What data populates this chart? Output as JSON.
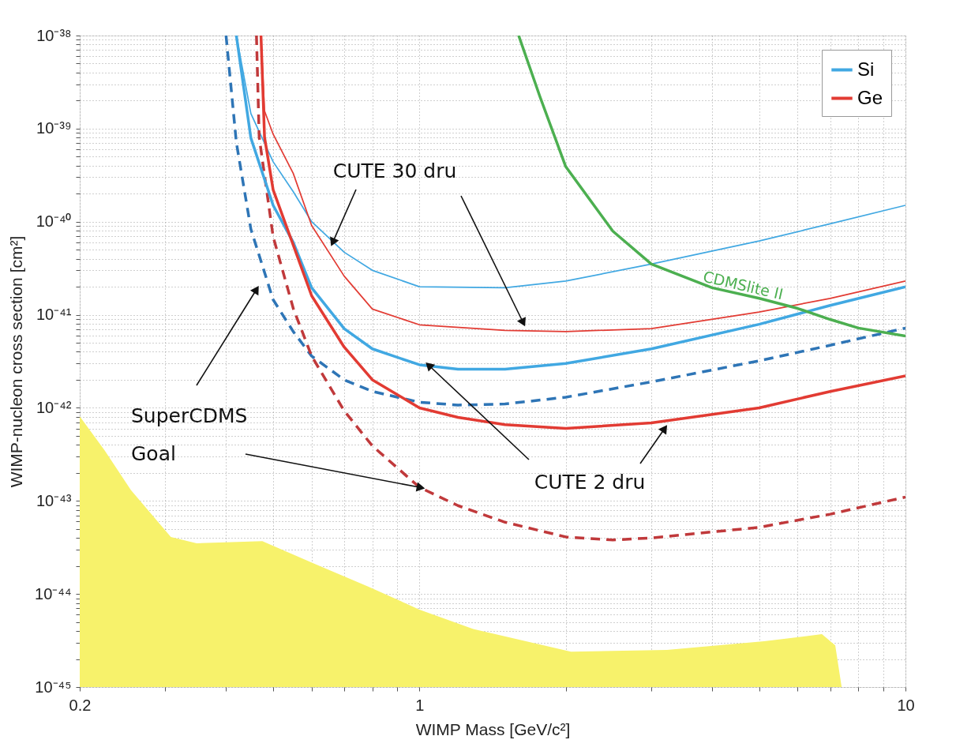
{
  "chart_data": {
    "type": "line",
    "log": "xy",
    "grid": true,
    "legend": "top right",
    "xlabel": "WIMP Mass [GeV/c²]",
    "ylabel": "WIMP-nucleon cross section [cm²]",
    "xlim": [
      0.2,
      10
    ],
    "ylim": [
      1e-45,
      1e-38
    ],
    "xticks": [
      0.2,
      {
        "value": 0.3,
        "label": null
      },
      {
        "value": 0.4,
        "label": null
      },
      {
        "value": 0.5,
        "label": null
      },
      {
        "value": 0.6,
        "label": null
      },
      {
        "value": 0.7,
        "label": null
      },
      {
        "value": 0.8,
        "label": null
      },
      {
        "value": 0.9,
        "label": null
      },
      1,
      {
        "value": 2,
        "label": null
      },
      {
        "value": 3,
        "label": null
      },
      {
        "value": 4,
        "label": null
      },
      {
        "value": 5,
        "label": null
      },
      {
        "value": 6,
        "label": null
      },
      {
        "value": 7,
        "label": null
      },
      {
        "value": 8,
        "label": null
      },
      {
        "value": 9,
        "label": null
      },
      10
    ],
    "yticks": [
      {
        "value": 1e-45,
        "label": "10⁻⁴⁵"
      },
      {
        "value": 1e-44,
        "label": "10⁻⁴⁴"
      },
      {
        "value": 1e-43,
        "label": "10⁻⁴³"
      },
      {
        "value": 1e-42,
        "label": "10⁻⁴²"
      },
      {
        "value": 1e-41,
        "label": "10⁻⁴¹"
      },
      {
        "value": 1e-40,
        "label": "10⁻⁴⁰"
      },
      {
        "value": 1e-39,
        "label": "10⁻³⁹"
      },
      {
        "value": 1e-38,
        "label": "10⁻³⁸"
      },
      {
        "value": 2e-45,
        "label": null
      },
      {
        "value": 3e-45,
        "label": null
      },
      {
        "value": 4e-45,
        "label": null
      },
      {
        "value": 5e-45,
        "label": null
      },
      {
        "value": 6e-45,
        "label": null
      },
      {
        "value": 7e-45,
        "label": null
      },
      {
        "value": 8e-45,
        "label": null
      },
      {
        "value": 9e-45,
        "label": null
      },
      {
        "value": 2e-44,
        "label": null
      },
      {
        "value": 3e-44,
        "label": null
      },
      {
        "value": 4e-44,
        "label": null
      },
      {
        "value": 5e-44,
        "label": null
      },
      {
        "value": 6e-44,
        "label": null
      },
      {
        "value": 7e-44,
        "label": null
      },
      {
        "value": 8e-44,
        "label": null
      },
      {
        "value": 9e-44,
        "label": null
      },
      {
        "value": 2e-43,
        "label": null
      },
      {
        "value": 3e-43,
        "label": null
      },
      {
        "value": 4e-43,
        "label": null
      },
      {
        "value": 5e-43,
        "label": null
      },
      {
        "value": 6e-43,
        "label": null
      },
      {
        "value": 7e-43,
        "label": null
      },
      {
        "value": 8e-43,
        "label": null
      },
      {
        "value": 9e-43,
        "label": null
      },
      {
        "value": 2e-42,
        "label": null
      },
      {
        "value": 3e-42,
        "label": null
      },
      {
        "value": 4e-42,
        "label": null
      },
      {
        "value": 5e-42,
        "label": null
      },
      {
        "value": 6e-42,
        "label": null
      },
      {
        "value": 7e-42,
        "label": null
      },
      {
        "value": 8e-42,
        "label": null
      },
      {
        "value": 9e-42,
        "label": null
      },
      {
        "value": 2e-41,
        "label": null
      },
      {
        "value": 3e-41,
        "label": null
      },
      {
        "value": 4e-41,
        "label": null
      },
      {
        "value": 5e-41,
        "label": null
      },
      {
        "value": 6e-41,
        "label": null
      },
      {
        "value": 7e-41,
        "label": null
      },
      {
        "value": 8e-41,
        "label": null
      },
      {
        "value": 9e-41,
        "label": null
      },
      {
        "value": 2e-40,
        "label": null
      },
      {
        "value": 3e-40,
        "label": null
      },
      {
        "value": 4e-40,
        "label": null
      },
      {
        "value": 5e-40,
        "label": null
      },
      {
        "value": 6e-40,
        "label": null
      },
      {
        "value": 7e-40,
        "label": null
      },
      {
        "value": 8e-40,
        "label": null
      },
      {
        "value": 9e-40,
        "label": null
      },
      {
        "value": 2e-39,
        "label": null
      },
      {
        "value": 3e-39,
        "label": null
      },
      {
        "value": 4e-39,
        "label": null
      },
      {
        "value": 5e-39,
        "label": null
      },
      {
        "value": 6e-39,
        "label": null
      },
      {
        "value": 7e-39,
        "label": null
      },
      {
        "value": 8e-39,
        "label": null
      },
      {
        "value": 9e-39,
        "label": null
      }
    ],
    "series": [
      {
        "type": "area",
        "color": "#f7f26b",
        "x": [
          0.2,
          0.225,
          0.255,
          0.308,
          0.348,
          0.475,
          0.61,
          0.784,
          1,
          1.29,
          2.05,
          3.23,
          5.12,
          6.73,
          7.17,
          7.39
        ],
        "values": [
          8.1e-43,
          3.5e-43,
          1.3e-43,
          4.1e-44,
          3.5e-44,
          3.7e-44,
          2.1e-44,
          1.2e-44,
          6.8e-45,
          4.2e-45,
          2.4e-45,
          2.5e-45,
          3.1e-45,
          3.7e-45,
          2.8e-45,
          1e-45
        ]
      },
      {
        "color": "#41a8e2",
        "x": [
          0.42,
          0.45,
          0.5,
          0.55,
          0.6,
          0.7,
          0.8,
          1,
          1.5,
          2,
          3,
          5,
          7,
          10
        ],
        "values": [
          1e-38,
          1.45e-39,
          4.4e-40,
          2.1e-40,
          1e-40,
          4.7e-41,
          3e-41,
          2e-41,
          1.95e-41,
          2.3e-41,
          3.5e-41,
          6.2e-41,
          9.5e-41,
          1.5e-40
        ]
      },
      {
        "color": "#e23b33",
        "x": [
          0.472,
          0.48,
          0.5,
          0.55,
          0.6,
          0.7,
          0.8,
          1,
          1.5,
          2,
          3,
          5,
          7,
          10
        ],
        "values": [
          1e-38,
          1.55e-39,
          8.7e-40,
          3.3e-40,
          9.1e-41,
          2.6e-41,
          1.15e-41,
          7.8e-42,
          6.8e-42,
          6.6e-42,
          7.1e-42,
          1.07e-41,
          1.5e-41,
          2.3e-41
        ]
      },
      {
        "color": "#2e75b6",
        "line_style": "dashed",
        "x": [
          0.4,
          0.42,
          0.45,
          0.5,
          0.55,
          0.6,
          0.7,
          0.8,
          1,
          1.2,
          1.5,
          2,
          3,
          5,
          7,
          10
        ],
        "values": [
          1e-38,
          7.1e-40,
          8.3e-41,
          1.45e-41,
          6.6e-42,
          3.6e-42,
          2e-42,
          1.5e-42,
          1.15e-42,
          1.07e-42,
          1.1e-42,
          1.3e-42,
          1.9e-42,
          3.2e-42,
          4.7e-42,
          7.2e-42
        ]
      },
      {
        "color": "#c0393b",
        "line_style": "dashed",
        "x": [
          0.462,
          0.468,
          0.5,
          0.55,
          0.6,
          0.7,
          0.8,
          1,
          1.2,
          1.5,
          2,
          2.5,
          3,
          5,
          7,
          10
        ],
        "values": [
          1e-38,
          8.1e-40,
          6.9e-41,
          1.17e-41,
          3.6e-42,
          9.3e-43,
          3.9e-43,
          1.4e-43,
          8.9e-44,
          5.9e-44,
          4.1e-44,
          3.8e-44,
          4e-44,
          5.2e-44,
          7.2e-44,
          1.1e-43
        ]
      },
      {
        "name": "Si",
        "color": "#41a8e2",
        "x": [
          0.42,
          0.45,
          0.5,
          0.55,
          0.6,
          0.7,
          0.8,
          1,
          1.2,
          1.5,
          2,
          3,
          5,
          7,
          10
        ],
        "values": [
          1e-38,
          7.9e-40,
          1.5e-40,
          6e-41,
          1.95e-41,
          7.1e-42,
          4.3e-42,
          2.9e-42,
          2.6e-42,
          2.6e-42,
          3e-42,
          4.3e-42,
          7.9e-42,
          1.26e-41,
          2e-41
        ]
      },
      {
        "name": "Ge",
        "color": "#e23b33",
        "x": [
          0.472,
          0.48,
          0.5,
          0.55,
          0.6,
          0.7,
          0.8,
          1,
          1.2,
          1.5,
          2,
          3,
          5,
          7,
          10
        ],
        "values": [
          1e-38,
          8.1e-40,
          2.2e-40,
          5.6e-41,
          1.6e-41,
          4.5e-42,
          2e-42,
          1e-42,
          7.9e-43,
          6.6e-43,
          6e-43,
          6.9e-43,
          1e-42,
          1.5e-42,
          2.2e-42
        ]
      },
      {
        "color": "#4caf50",
        "x": [
          1.6,
          1.77,
          2,
          2.5,
          3,
          4,
          5,
          6,
          7,
          8,
          10
        ],
        "values": [
          1e-38,
          2.2e-39,
          3.9e-40,
          7.9e-41,
          3.5e-41,
          1.95e-41,
          1.5e-41,
          1.17e-41,
          8.9e-42,
          7.2e-42,
          5.9e-42
        ]
      }
    ],
    "annotations": [
      {
        "text": "CUTE 30 dru",
        "x": 0.665,
        "y": 6.2e-41
      },
      {
        "text": "CUTE 2 dru",
        "x": 1.05,
        "y": 2.8e-42
      },
      {
        "text": "SuperCDMS Goal",
        "x": 1,
        "y": 1.4e-43
      },
      {
        "text": "CDMSlite II",
        "x": 4.6,
        "y": 1.75e-41
      }
    ]
  }
}
